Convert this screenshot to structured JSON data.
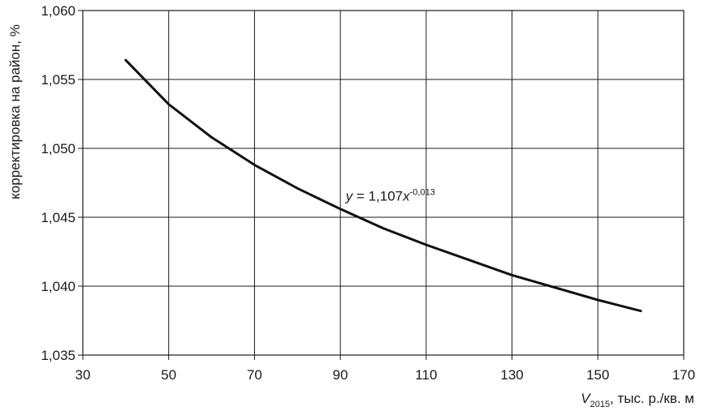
{
  "chart_data": {
    "type": "line",
    "title": "",
    "xlabel": {
      "symbol": "V",
      "subscript": "2015",
      "rest": ", тыс. р./кв. м"
    },
    "ylabel": "корректировка на район, %",
    "xlim": [
      30,
      170
    ],
    "ylim": [
      1.035,
      1.06
    ],
    "x_ticks": [
      30,
      50,
      70,
      90,
      110,
      130,
      150,
      170
    ],
    "x_tick_labels": [
      "30",
      "50",
      "70",
      "90",
      "110",
      "130",
      "150",
      "170"
    ],
    "y_ticks": [
      1.035,
      1.04,
      1.045,
      1.05,
      1.055,
      1.06
    ],
    "y_tick_labels": [
      "1,035",
      "1,040",
      "1,045",
      "1,050",
      "1,055",
      "1,060"
    ],
    "grid": true,
    "series": [
      {
        "x": [
          40,
          50,
          60,
          70,
          80,
          90,
          100,
          110,
          120,
          130,
          140,
          150,
          160
        ],
        "y": [
          1.0564,
          1.0532,
          1.0508,
          1.0488,
          1.0471,
          1.0456,
          1.0442,
          1.043,
          1.0419,
          1.0408,
          1.0399,
          1.039,
          1.0382
        ]
      }
    ],
    "annotation": {
      "x": 92,
      "y": 1.0461,
      "var": "y",
      "eq": " = 1,107",
      "xvar": "x",
      "exponent": "-0,013"
    }
  }
}
